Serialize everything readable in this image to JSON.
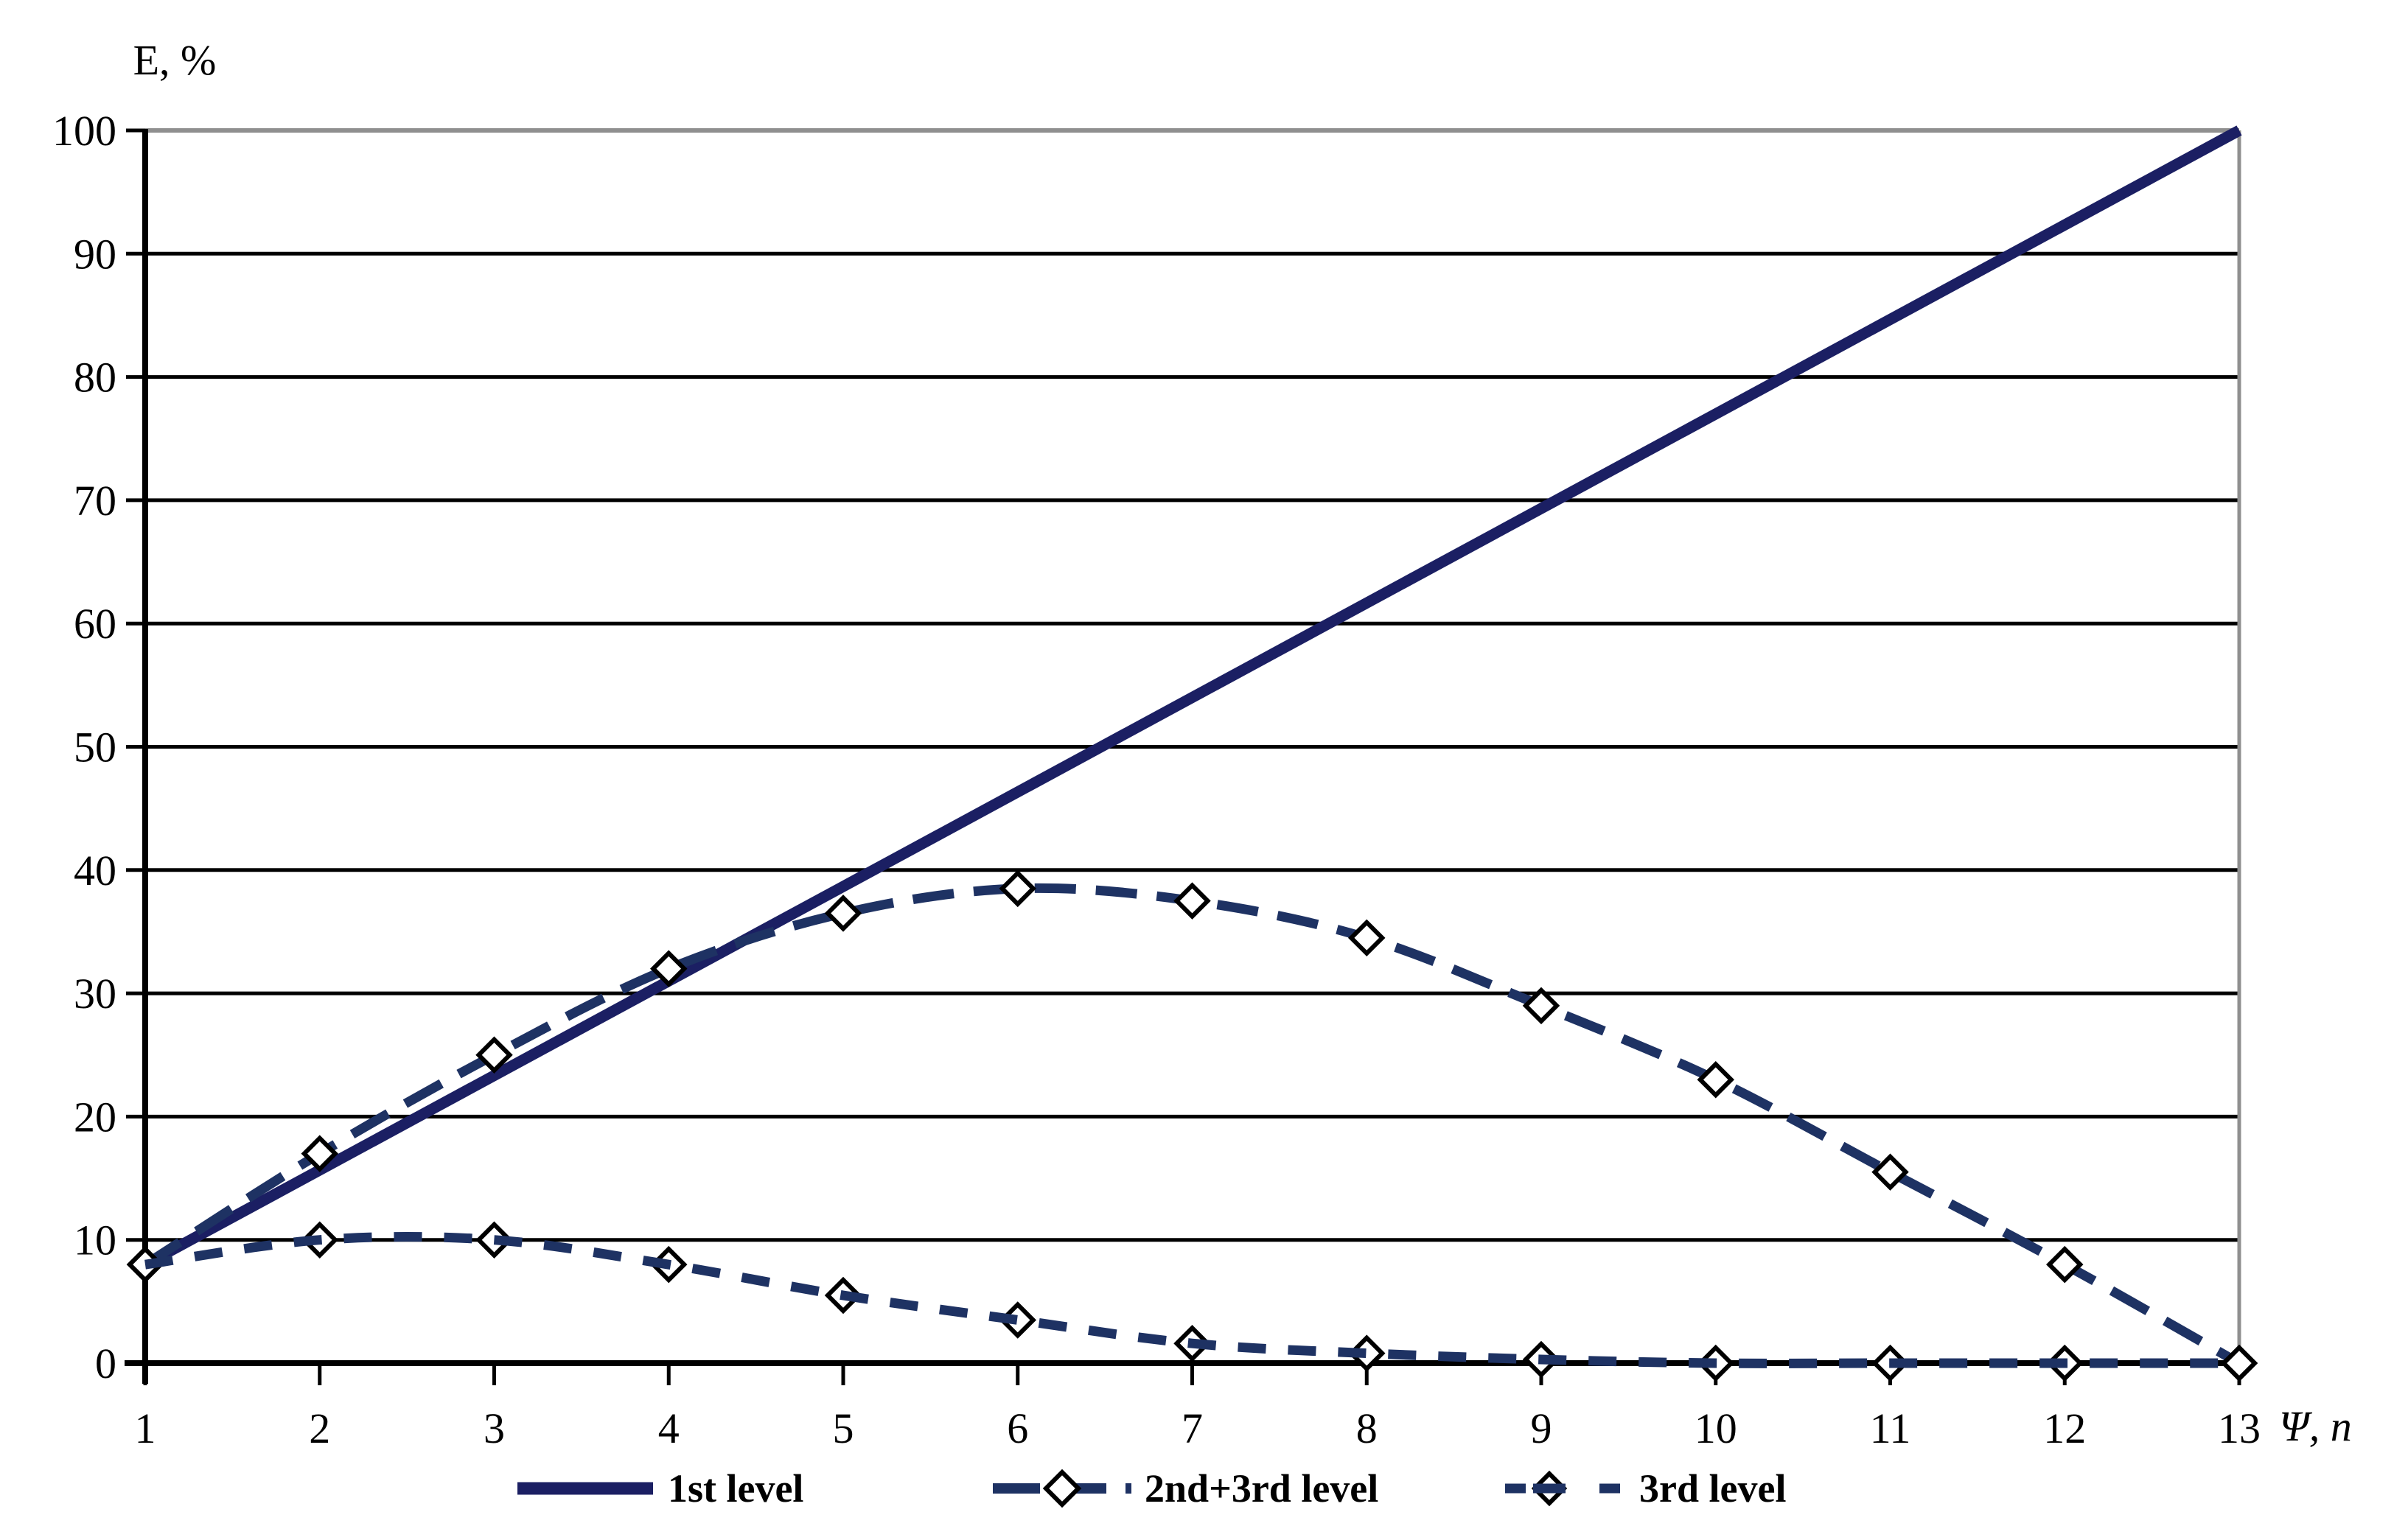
{
  "chart_data": {
    "type": "line",
    "title": "",
    "ylabel": "E, %",
    "xlabel": "Ψ, n",
    "x": [
      1,
      2,
      3,
      4,
      5,
      6,
      7,
      8,
      9,
      10,
      11,
      12,
      13
    ],
    "ylim": [
      0,
      100
    ],
    "ytick_step": 10,
    "grid": "horizontal-black-gridlines",
    "legend_position": "bottom-center",
    "axis_color": "#000000",
    "plot_border_color": "#8f8f8f",
    "series": [
      {
        "name": "1st level",
        "style": "solid",
        "marker": "none",
        "color": "#1b1f63",
        "values": [
          8,
          15.7,
          23.3,
          31,
          38.7,
          46.3,
          54,
          61.7,
          69.3,
          77,
          84.7,
          92.3,
          100
        ]
      },
      {
        "name": "2nd+3rd level",
        "style": "long-dash",
        "marker": "open-diamond",
        "color": "#1e3263",
        "values": [
          8,
          17,
          25,
          32,
          36.5,
          38.5,
          37.5,
          34.5,
          29,
          23,
          15.5,
          8,
          0
        ]
      },
      {
        "name": "3rd level",
        "style": "short-dash",
        "marker": "open-diamond",
        "color": "#1e3263",
        "values": [
          8,
          10,
          10,
          8,
          5.5,
          3.5,
          1.6,
          0.8,
          0.3,
          0,
          0,
          0,
          0
        ]
      }
    ]
  }
}
